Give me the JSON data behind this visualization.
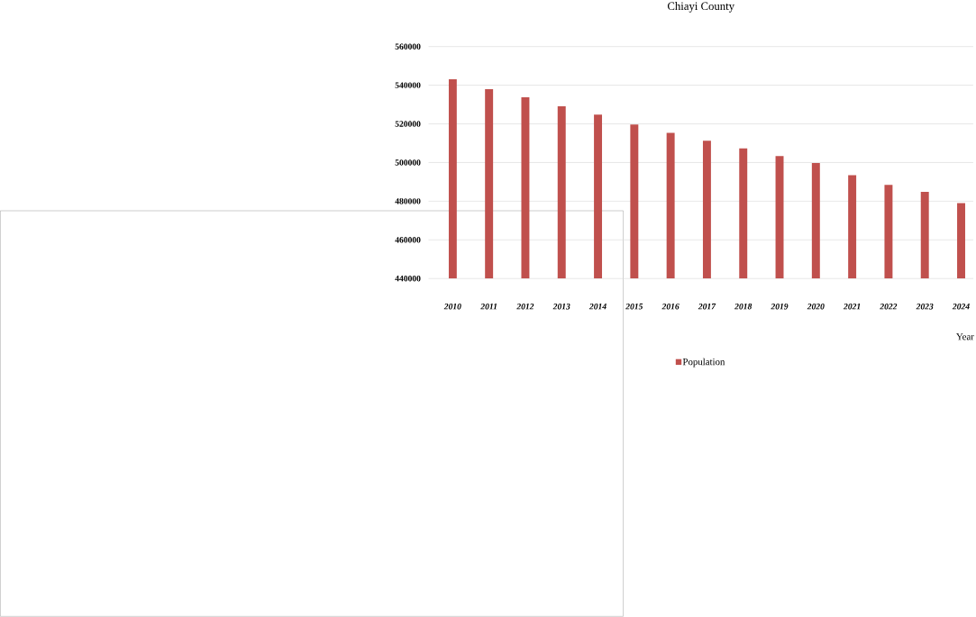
{
  "chart_data": {
    "type": "bar",
    "title": "Chiayi County",
    "xlabel": "Year",
    "categories": [
      "2010",
      "2011",
      "2012",
      "2013",
      "2014",
      "2015",
      "2016",
      "2017",
      "2018",
      "2019",
      "2020",
      "2021",
      "2022",
      "2023",
      "2024"
    ],
    "series": [
      {
        "name": "Population",
        "color": "#c0504d",
        "values": [
          543100,
          538000,
          533800,
          529100,
          524800,
          519700,
          515300,
          511300,
          507300,
          503300,
          499700,
          493500,
          488400,
          484800,
          479000
        ]
      }
    ],
    "ylim": [
      440000,
      560000
    ],
    "yticks": [
      440000,
      460000,
      480000,
      500000,
      520000,
      540000,
      560000
    ],
    "grid": "y",
    "legend": "bottom"
  }
}
